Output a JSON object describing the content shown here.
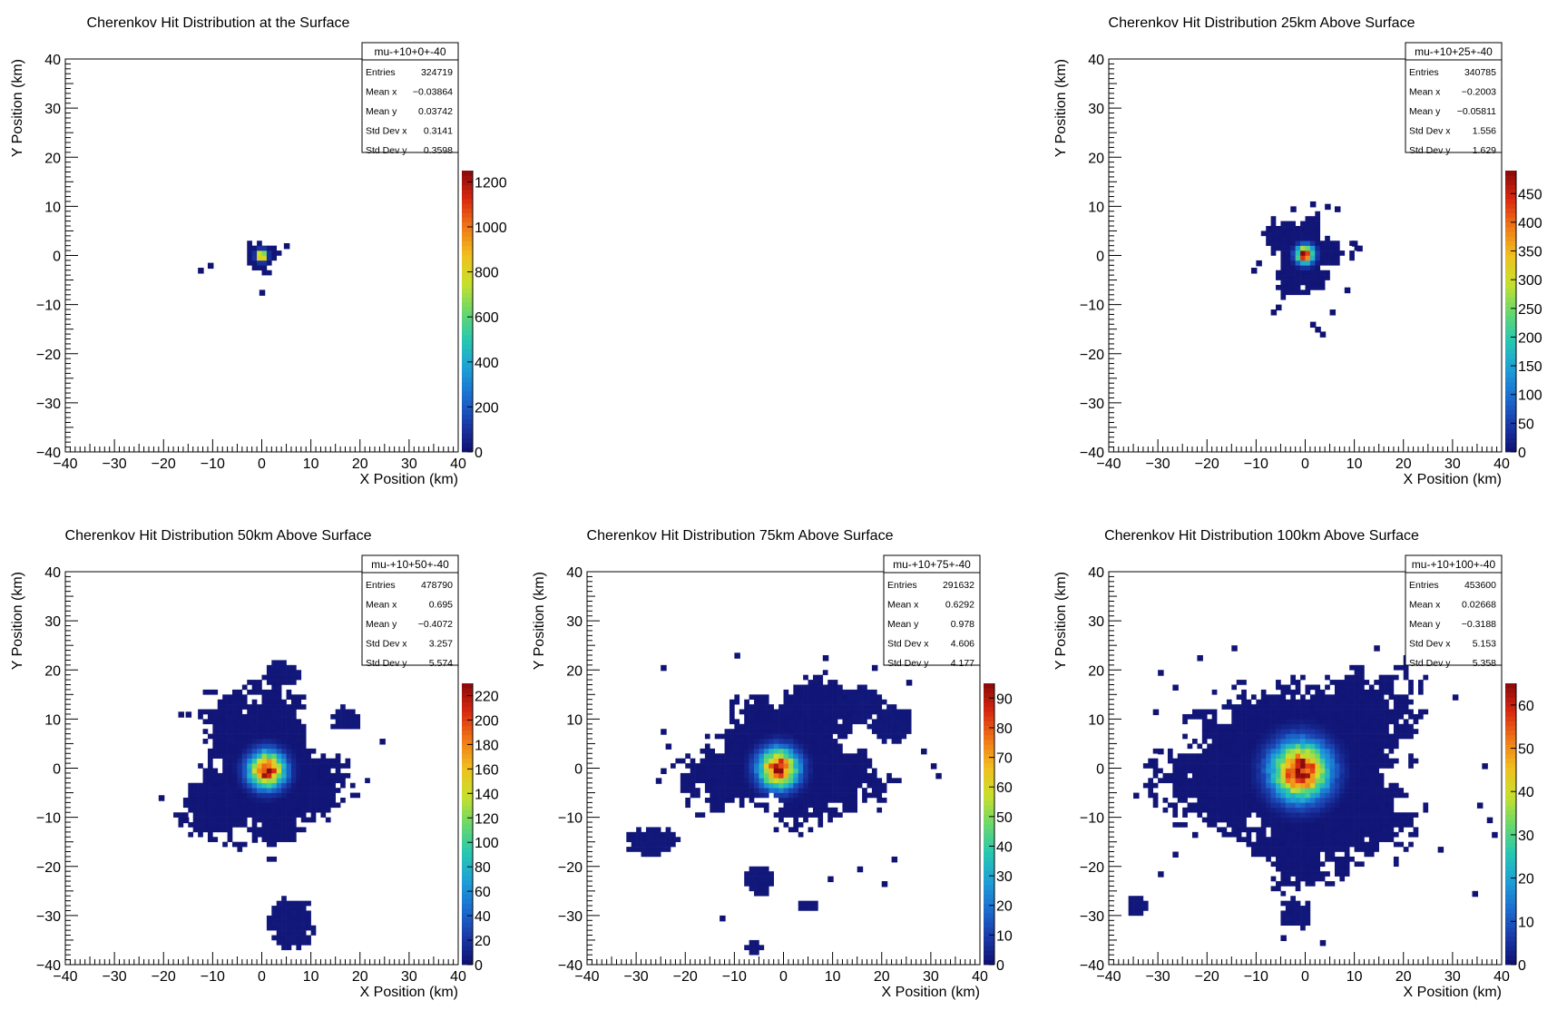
{
  "colormap": [
    "#0f0f6e",
    "#1a3aa8",
    "#1b6ed0",
    "#1ea0d6",
    "#27c8b0",
    "#6ad86a",
    "#c8e02c",
    "#f0c020",
    "#f07818",
    "#d82810",
    "#8a0a0a"
  ],
  "chart_data": [
    {
      "type": "heatmap",
      "title": "Cherenkov Hit Distribution at the Surface",
      "xlabel": "X Position (km)",
      "ylabel": "Y Position (km)",
      "xlim": [
        -40,
        40
      ],
      "ylim": [
        -40,
        40
      ],
      "x_ticks": [
        "−40",
        "−30",
        "−20",
        "−10",
        "0",
        "10",
        "20",
        "30",
        "40"
      ],
      "y_ticks": [
        "−40",
        "−30",
        "−20",
        "−10",
        "0",
        "10",
        "20",
        "30",
        "40"
      ],
      "zlim": [
        0,
        1250
      ],
      "z_ticks": [
        "0",
        "200",
        "400",
        "600",
        "800",
        "1000",
        "1200"
      ],
      "z_tick_values": [
        0,
        200,
        400,
        600,
        800,
        1000,
        1200
      ],
      "stats": {
        "name": "mu-+10+0+-40",
        "rows": [
          {
            "label": "Entries",
            "value": "324719"
          },
          {
            "label": "Mean x",
            "value": "−0.03864"
          },
          {
            "label": "Mean y",
            "value": "0.03742"
          },
          {
            "label": "Std Dev x",
            "value": "0.3141"
          },
          {
            "label": "Std Dev y",
            "value": "0.3598"
          }
        ]
      },
      "peak": 1250,
      "shape": {
        "cx": 0,
        "cy": 0,
        "rx": 3.6,
        "ry": 3.2,
        "lobes": 0.25
      },
      "core": {
        "cx": 0,
        "cy": 0,
        "sigma": 0.7
      },
      "blobs": [],
      "scatter": [
        [
          -13,
          -3.5
        ],
        [
          -11,
          -2.5
        ],
        [
          -0.5,
          -8
        ],
        [
          4.5,
          1.5
        ]
      ]
    },
    {
      "type": "heatmap",
      "title": "Cherenkov Hit Distribution 25km Above Surface",
      "xlabel": "X Position (km)",
      "ylabel": "Y Position (km)",
      "xlim": [
        -40,
        40
      ],
      "ylim": [
        -40,
        40
      ],
      "x_ticks": [
        "−40",
        "−30",
        "−20",
        "−10",
        "0",
        "10",
        "20",
        "30",
        "40"
      ],
      "y_ticks": [
        "−40",
        "−30",
        "−20",
        "−10",
        "0",
        "10",
        "20",
        "30",
        "40"
      ],
      "zlim": [
        0,
        490
      ],
      "z_ticks": [
        "0",
        "50",
        "100",
        "150",
        "200",
        "250",
        "300",
        "350",
        "400",
        "450"
      ],
      "z_tick_values": [
        0,
        50,
        100,
        150,
        200,
        250,
        300,
        350,
        400,
        450
      ],
      "stats": {
        "name": "mu-+10+25+-40",
        "rows": [
          {
            "label": "Entries",
            "value": "340785"
          },
          {
            "label": "Mean x",
            "value": "−0.2003"
          },
          {
            "label": "Mean y",
            "value": "−0.05811"
          },
          {
            "label": "Std Dev x",
            "value": "1.556"
          },
          {
            "label": "Std Dev y",
            "value": "1.629"
          }
        ]
      },
      "peak": 490,
      "shape": {
        "cx": 0,
        "cy": 0,
        "rx": 7.5,
        "ry": 8,
        "lobes": 0.35
      },
      "core": {
        "cx": 0,
        "cy": 0.2,
        "sigma": 1.2
      },
      "blobs": [],
      "scatter": [
        [
          -10,
          -2
        ],
        [
          -11,
          -3.5
        ],
        [
          9.5,
          2
        ],
        [
          10.5,
          1
        ],
        [
          6,
          9
        ],
        [
          -6,
          -11
        ],
        [
          -7,
          -12
        ],
        [
          2,
          -15.5
        ],
        [
          3,
          -16.5
        ],
        [
          1,
          -14.5
        ],
        [
          8,
          -7.5
        ],
        [
          -3,
          9
        ],
        [
          1,
          10
        ],
        [
          4,
          9.5
        ],
        [
          -8,
          5
        ],
        [
          5,
          -12
        ]
      ]
    },
    {
      "type": "heatmap",
      "title": "Cherenkov Hit Distribution 50km Above Surface",
      "xlabel": "X Position (km)",
      "ylabel": "Y Position (km)",
      "xlim": [
        -40,
        40
      ],
      "ylim": [
        -40,
        40
      ],
      "x_ticks": [
        "−40",
        "−30",
        "−20",
        "−10",
        "0",
        "10",
        "20",
        "30",
        "40"
      ],
      "y_ticks": [
        "−40",
        "−30",
        "−20",
        "−10",
        "0",
        "10",
        "20",
        "30",
        "40"
      ],
      "zlim": [
        0,
        230
      ],
      "z_ticks": [
        "0",
        "20",
        "40",
        "60",
        "80",
        "100",
        "120",
        "140",
        "160",
        "180",
        "200",
        "220"
      ],
      "z_tick_values": [
        0,
        20,
        40,
        60,
        80,
        100,
        120,
        140,
        160,
        180,
        200,
        220
      ],
      "stats": {
        "name": "mu-+10+50+-40",
        "rows": [
          {
            "label": "Entries",
            "value": "478790"
          },
          {
            "label": "Mean x",
            "value": "0.695"
          },
          {
            "label": "Mean y",
            "value": "−0.4072"
          },
          {
            "label": "Std Dev x",
            "value": "3.257"
          },
          {
            "label": "Std Dev y",
            "value": "5.574"
          }
        ]
      },
      "peak": 230,
      "shape": {
        "cx": 0.5,
        "cy": -0.5,
        "rx": 15,
        "ry": 17,
        "lobes": 0.3
      },
      "core": {
        "cx": 1,
        "cy": -0.3,
        "sigma": 2.4
      },
      "blobs": [
        {
          "cx": 6,
          "cy": -31.5,
          "rx": 5,
          "ry": 6
        },
        {
          "cx": 4,
          "cy": 19,
          "rx": 4,
          "ry": 3
        },
        {
          "cx": 17,
          "cy": 10,
          "rx": 3,
          "ry": 3
        }
      ],
      "scatter": [
        [
          -21,
          -6.5
        ],
        [
          -16,
          -11
        ],
        [
          -17,
          10.5
        ],
        [
          -15.5,
          10.5
        ],
        [
          -2,
          -15
        ],
        [
          24,
          5
        ]
      ]
    },
    {
      "type": "heatmap",
      "title": "Cherenkov Hit Distribution 75km Above Surface",
      "xlabel": "X Position (km)",
      "ylabel": "Y Position (km)",
      "xlim": [
        -40,
        40
      ],
      "ylim": [
        -40,
        40
      ],
      "x_ticks": [
        "−40",
        "−30",
        "−20",
        "−10",
        "0",
        "10",
        "20",
        "30",
        "40"
      ],
      "y_ticks": [
        "−40",
        "−30",
        "−20",
        "−10",
        "0",
        "10",
        "20",
        "30",
        "40"
      ],
      "zlim": [
        0,
        95
      ],
      "z_ticks": [
        "0",
        "10",
        "20",
        "30",
        "40",
        "50",
        "60",
        "70",
        "80",
        "90"
      ],
      "z_tick_values": [
        0,
        10,
        20,
        30,
        40,
        50,
        60,
        70,
        80,
        90
      ],
      "stats": {
        "name": "mu-+10+75+-40",
        "rows": [
          {
            "label": "Entries",
            "value": "291632"
          },
          {
            "label": "Mean x",
            "value": "0.6292"
          },
          {
            "label": "Mean y",
            "value": "0.978"
          },
          {
            "label": "Std Dev x",
            "value": "4.606"
          },
          {
            "label": "Std Dev y",
            "value": "4.177"
          }
        ]
      },
      "peak": 95,
      "shape": {
        "cx": 1,
        "cy": 2,
        "rx": 18,
        "ry": 14,
        "lobes": 0.35
      },
      "core": {
        "cx": -1,
        "cy": 0,
        "sigma": 2.6
      },
      "blobs": [
        {
          "cx": -27,
          "cy": -15,
          "rx": 6,
          "ry": 3.5
        },
        {
          "cx": -5,
          "cy": -23,
          "rx": 3.5,
          "ry": 3.5
        },
        {
          "cx": 5,
          "cy": -28,
          "rx": 2.5,
          "ry": 1.5
        },
        {
          "cx": -6,
          "cy": -36.5,
          "rx": 2.5,
          "ry": 1.5
        },
        {
          "cx": 14,
          "cy": 13,
          "rx": 7,
          "ry": 4
        },
        {
          "cx": 22,
          "cy": 9,
          "rx": 5,
          "ry": 4
        }
      ],
      "scatter": [
        [
          -25,
          20
        ],
        [
          -10,
          22.5
        ],
        [
          -25,
          7
        ],
        [
          -24,
          4
        ],
        [
          -25,
          -1
        ],
        [
          -26,
          -3
        ],
        [
          30,
          0
        ],
        [
          31,
          -2
        ],
        [
          28,
          3
        ],
        [
          22,
          -19
        ],
        [
          15,
          -21
        ],
        [
          9,
          -23
        ],
        [
          20,
          -24
        ],
        [
          25,
          17
        ],
        [
          18,
          20
        ],
        [
          8,
          22
        ],
        [
          -13,
          -31
        ]
      ]
    },
    {
      "type": "heatmap",
      "title": "Cherenkov Hit Distribution 100km Above Surface",
      "xlabel": "X Position (km)",
      "ylabel": "Y Position (km)",
      "xlim": [
        -40,
        40
      ],
      "ylim": [
        -40,
        40
      ],
      "x_ticks": [
        "−40",
        "−30",
        "−20",
        "−10",
        "0",
        "10",
        "20",
        "30",
        "40"
      ],
      "y_ticks": [
        "−40",
        "−30",
        "−20",
        "−10",
        "0",
        "10",
        "20",
        "30",
        "40"
      ],
      "zlim": [
        0,
        65
      ],
      "z_ticks": [
        "0",
        "10",
        "20",
        "30",
        "40",
        "50",
        "60"
      ],
      "z_tick_values": [
        0,
        10,
        20,
        30,
        40,
        50,
        60
      ],
      "stats": {
        "name": "mu-+10+100+-40",
        "rows": [
          {
            "label": "Entries",
            "value": "453600"
          },
          {
            "label": "Mean x",
            "value": "0.02668"
          },
          {
            "label": "Mean y",
            "value": "−0.3188"
          },
          {
            "label": "Std Dev x",
            "value": "5.153"
          },
          {
            "label": "Std Dev y",
            "value": "5.358"
          }
        ]
      },
      "peak": 65,
      "shape": {
        "cx": -0.5,
        "cy": -1,
        "rx": 25,
        "ry": 21,
        "lobes": 0.28
      },
      "core": {
        "cx": -1,
        "cy": -0.5,
        "sigma": 3.8
      },
      "blobs": [
        {
          "cx": -34,
          "cy": -28,
          "rx": 2.5,
          "ry": 2.5
        },
        {
          "cx": -2,
          "cy": -30,
          "rx": 4,
          "ry": 3
        }
      ],
      "scatter": [
        [
          -30,
          19
        ],
        [
          -27,
          16
        ],
        [
          -22,
          22
        ],
        [
          -15,
          24
        ],
        [
          14,
          24
        ],
        [
          20,
          22
        ],
        [
          30,
          14
        ],
        [
          35,
          -8
        ],
        [
          37,
          -11
        ],
        [
          38,
          -14
        ],
        [
          34,
          -26
        ],
        [
          -30,
          -22
        ],
        [
          -27,
          -18
        ],
        [
          -35,
          -6
        ],
        [
          -31,
          11
        ],
        [
          -23,
          -14
        ],
        [
          27,
          -17
        ],
        [
          -5,
          -35
        ],
        [
          3,
          -36
        ],
        [
          36,
          0
        ],
        [
          -30,
          3
        ]
      ]
    }
  ]
}
